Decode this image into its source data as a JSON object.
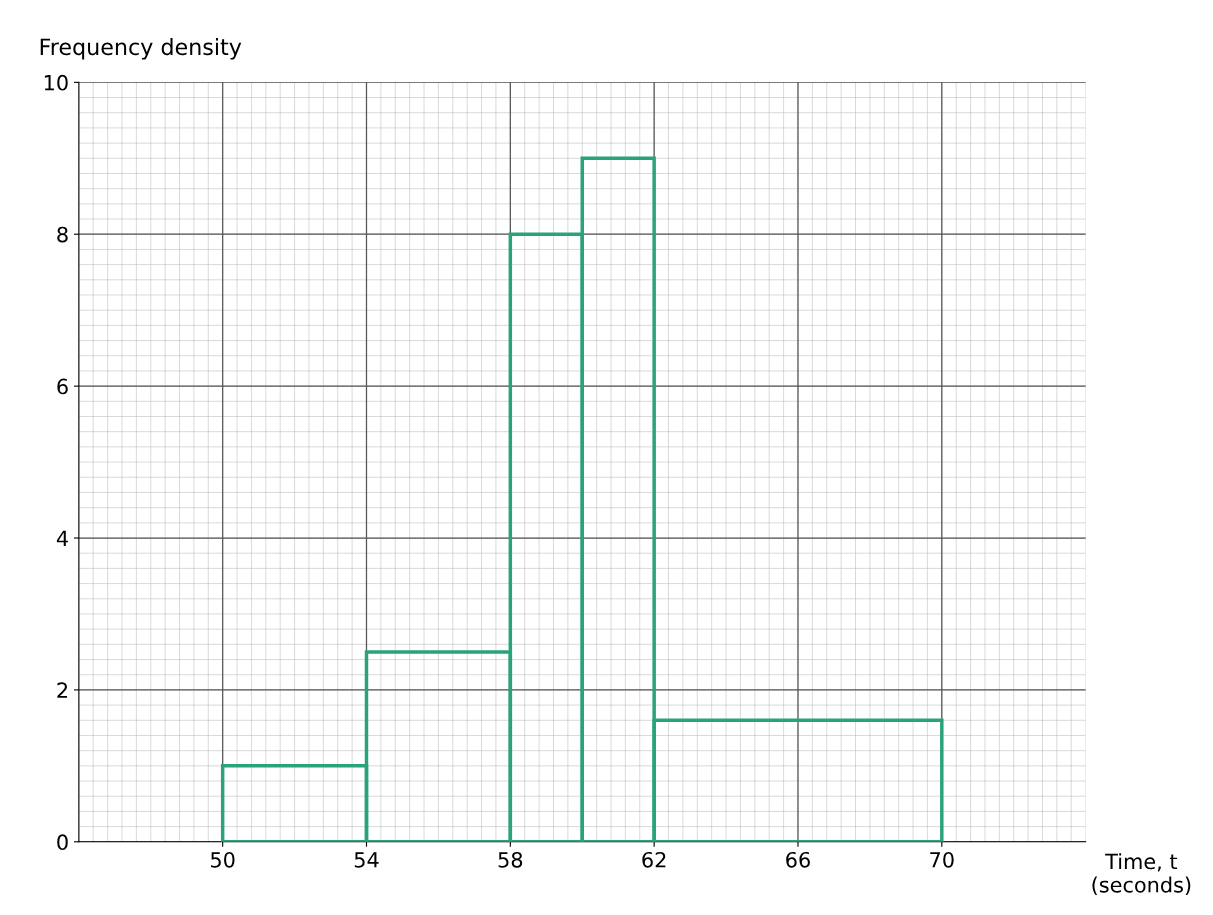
{
  "chart_data": {
    "type": "histogram",
    "xlabel": "Time, t\n(seconds)",
    "ylabel": "Frequency density",
    "bins": [
      50,
      54,
      58,
      60,
      62,
      70
    ],
    "values": [
      1.0,
      2.5,
      8.0,
      9.0,
      1.6
    ],
    "color": "#2aa37a",
    "xlim": [
      46,
      74
    ],
    "xticks": [
      50,
      54,
      58,
      62,
      66,
      70
    ],
    "ylim": [
      0,
      10
    ],
    "yticks": [
      0,
      2,
      4,
      6,
      8,
      10
    ],
    "grid": true
  }
}
